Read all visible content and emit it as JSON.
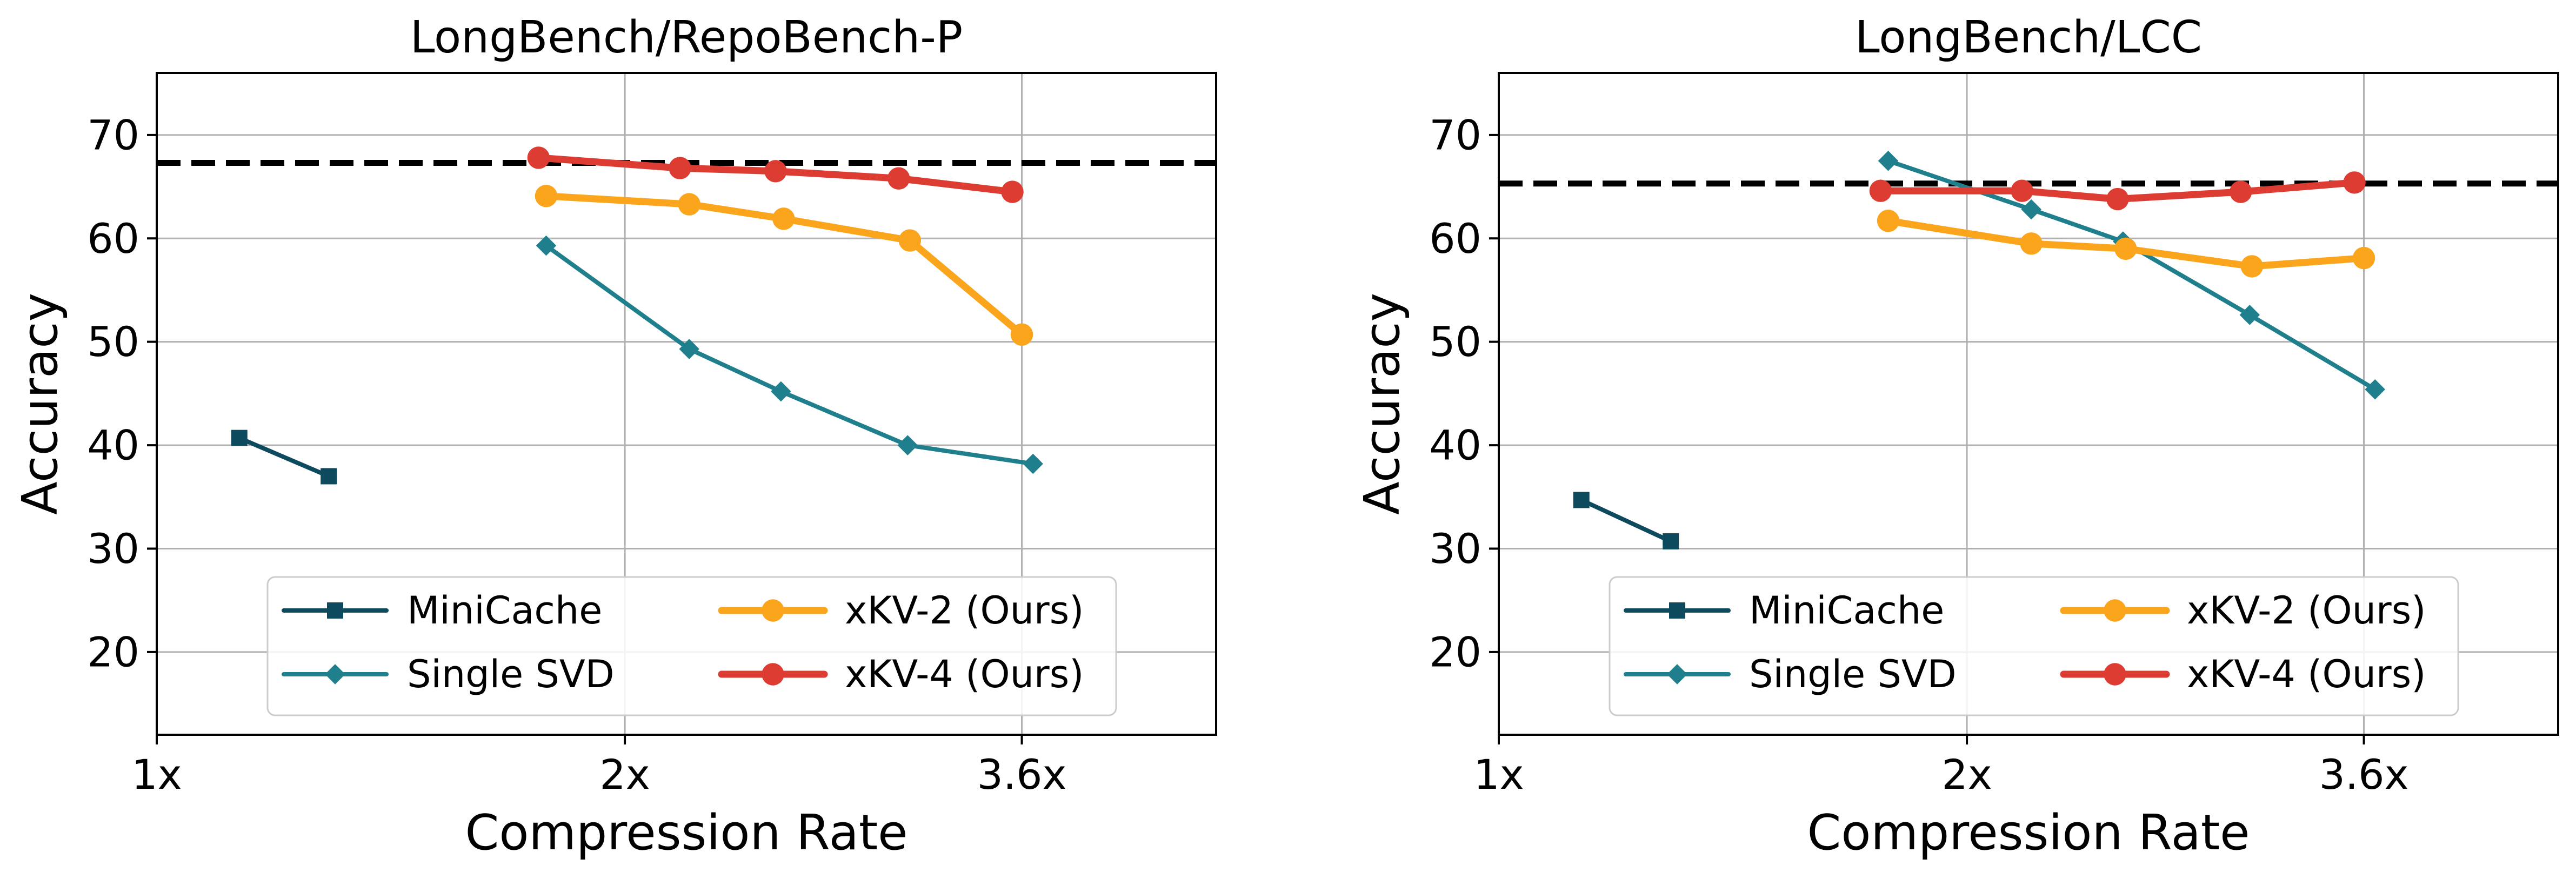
{
  "chart_data": [
    {
      "type": "line",
      "title": "LongBench/RepoBench-P",
      "xlabel": "Compression Rate",
      "ylabel": "Accuracy",
      "xscale": "log",
      "xlim": [
        1.0,
        4.8
      ],
      "ylim": [
        12,
        76
      ],
      "x_ticks": [
        {
          "value": 1.0,
          "label": "1x"
        },
        {
          "value": 2.0,
          "label": "2x"
        },
        {
          "value": 3.6,
          "label": "3.6x"
        }
      ],
      "y_ticks": [
        20,
        30,
        40,
        50,
        60,
        70
      ],
      "grid": true,
      "legend": {
        "placement": "lower center",
        "columns": 2
      },
      "reference_line": {
        "y": 67.3,
        "style": "dashed",
        "color": "#000000"
      },
      "series": [
        {
          "name": "MiniCache",
          "color": "#0d4a5e",
          "marker": "square",
          "x": [
            1.13,
            1.29
          ],
          "y": [
            40.7,
            37.0
          ]
        },
        {
          "name": "Single SVD",
          "color": "#1f7f8c",
          "marker": "diamond",
          "x": [
            1.78,
            2.2,
            2.52,
            3.04,
            3.66
          ],
          "y": [
            59.3,
            49.3,
            45.2,
            40.0,
            38.2
          ]
        },
        {
          "name": "xKV-2 (Ours)",
          "color": "#fba51c",
          "marker": "circle",
          "x": [
            1.78,
            2.2,
            2.53,
            3.05,
            3.6
          ],
          "y": [
            64.1,
            63.3,
            61.9,
            59.8,
            50.7
          ]
        },
        {
          "name": "xKV-4 (Ours)",
          "color": "#dc3c32",
          "marker": "circle",
          "x": [
            1.76,
            2.17,
            2.5,
            3.0,
            3.55
          ],
          "y": [
            67.8,
            66.8,
            66.5,
            65.8,
            64.5
          ]
        }
      ]
    },
    {
      "type": "line",
      "title": "LongBench/LCC",
      "xlabel": "Compression Rate",
      "ylabel": "Accuracy",
      "xscale": "log",
      "xlim": [
        1.0,
        4.8
      ],
      "ylim": [
        12,
        76
      ],
      "x_ticks": [
        {
          "value": 1.0,
          "label": "1x"
        },
        {
          "value": 2.0,
          "label": "2x"
        },
        {
          "value": 3.6,
          "label": "3.6x"
        }
      ],
      "y_ticks": [
        20,
        30,
        40,
        50,
        60,
        70
      ],
      "grid": true,
      "legend": {
        "placement": "lower center",
        "columns": 2
      },
      "reference_line": {
        "y": 65.3,
        "style": "dashed",
        "color": "#000000"
      },
      "series": [
        {
          "name": "MiniCache",
          "color": "#0d4a5e",
          "marker": "square",
          "x": [
            1.13,
            1.29
          ],
          "y": [
            34.7,
            30.7
          ]
        },
        {
          "name": "Single SVD",
          "color": "#1f7f8c",
          "marker": "diamond",
          "x": [
            1.78,
            2.2,
            2.52,
            3.04,
            3.66
          ],
          "y": [
            67.5,
            62.8,
            59.7,
            52.6,
            45.4
          ]
        },
        {
          "name": "xKV-2 (Ours)",
          "color": "#fba51c",
          "marker": "circle",
          "x": [
            1.78,
            2.2,
            2.53,
            3.05,
            3.6
          ],
          "y": [
            61.7,
            59.5,
            59.0,
            57.3,
            58.1
          ]
        },
        {
          "name": "xKV-4 (Ours)",
          "color": "#dc3c32",
          "marker": "circle",
          "x": [
            1.76,
            2.17,
            2.5,
            3.0,
            3.55
          ],
          "y": [
            64.6,
            64.6,
            63.8,
            64.5,
            65.4
          ]
        }
      ]
    }
  ]
}
